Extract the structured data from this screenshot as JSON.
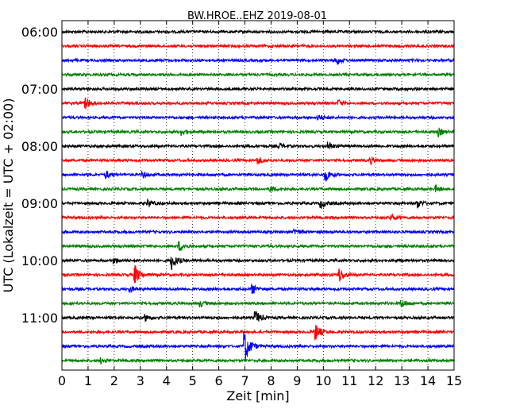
{
  "chart_data": {
    "type": "line",
    "title": "BW.HROE..EHZ 2019-08-01",
    "xlabel": "Zeit  [min]",
    "ylabel": "UTC (Lokalzeit = UTC + 02:00)",
    "xlim": [
      0,
      15
    ],
    "x_ticks": [
      0,
      1,
      2,
      3,
      4,
      5,
      6,
      7,
      8,
      9,
      10,
      11,
      12,
      13,
      14,
      15
    ],
    "x_tick_labels": [
      "0",
      "1",
      "2",
      "3",
      "4",
      "5",
      "6",
      "7",
      "8",
      "9",
      "10",
      "11",
      "12",
      "13",
      "14",
      "15"
    ],
    "y_tick_labels": [
      "06:00",
      "07:00",
      "08:00",
      "09:00",
      "10:00",
      "11:00"
    ],
    "grid": "vertical dotted",
    "series_colors": [
      "#000000",
      "#ff0000",
      "#0000ff",
      "#008000"
    ],
    "traces": [
      {
        "start": "06:00",
        "events": []
      },
      {
        "start": "06:15",
        "events": []
      },
      {
        "start": "06:30",
        "events": [
          {
            "t": 10.5,
            "amp": 0.45
          }
        ]
      },
      {
        "start": "06:45",
        "events": []
      },
      {
        "start": "07:00",
        "events": []
      },
      {
        "start": "07:15",
        "events": [
          {
            "t": 0.9,
            "amp": 0.6
          },
          {
            "t": 10.6,
            "amp": 0.3
          }
        ]
      },
      {
        "start": "07:30",
        "events": [
          {
            "t": 9.8,
            "amp": 0.3
          }
        ]
      },
      {
        "start": "07:45",
        "events": [
          {
            "t": 4.6,
            "amp": 0.3
          },
          {
            "t": 14.4,
            "amp": 0.4
          }
        ]
      },
      {
        "start": "08:00",
        "events": [
          {
            "t": 8.3,
            "amp": 0.3
          },
          {
            "t": 10.2,
            "amp": 0.35
          }
        ]
      },
      {
        "start": "08:15",
        "events": [
          {
            "t": 7.5,
            "amp": 0.35
          },
          {
            "t": 11.8,
            "amp": 0.35
          }
        ]
      },
      {
        "start": "08:30",
        "events": [
          {
            "t": 1.7,
            "amp": 0.35
          },
          {
            "t": 3.1,
            "amp": 0.3
          },
          {
            "t": 10.1,
            "amp": 0.6
          }
        ]
      },
      {
        "start": "08:45",
        "events": [
          {
            "t": 8.0,
            "amp": 0.3
          },
          {
            "t": 14.3,
            "amp": 0.3
          }
        ]
      },
      {
        "start": "09:00",
        "events": [
          {
            "t": 3.3,
            "amp": 0.35
          },
          {
            "t": 9.9,
            "amp": 0.45
          },
          {
            "t": 13.6,
            "amp": 0.45
          }
        ]
      },
      {
        "start": "09:15",
        "events": [
          {
            "t": 12.6,
            "amp": 0.3
          }
        ]
      },
      {
        "start": "09:30",
        "events": [
          {
            "t": 8.9,
            "amp": 0.3
          }
        ]
      },
      {
        "start": "09:45",
        "events": [
          {
            "t": 4.5,
            "amp": 0.5
          }
        ]
      },
      {
        "start": "10:00",
        "events": [
          {
            "t": 4.2,
            "amp": 0.9
          },
          {
            "t": 2.0,
            "amp": 0.3
          }
        ]
      },
      {
        "start": "10:15",
        "events": [
          {
            "t": 2.8,
            "amp": 1.0
          },
          {
            "t": 10.6,
            "amp": 0.75
          }
        ]
      },
      {
        "start": "10:30",
        "events": [
          {
            "t": 7.3,
            "amp": 0.45
          },
          {
            "t": 2.6,
            "amp": 0.3
          }
        ]
      },
      {
        "start": "10:45",
        "events": [
          {
            "t": 13.0,
            "amp": 0.35
          },
          {
            "t": 5.3,
            "amp": 0.3
          }
        ]
      },
      {
        "start": "11:00",
        "events": [
          {
            "t": 7.4,
            "amp": 0.75
          },
          {
            "t": 3.2,
            "amp": 0.3
          }
        ]
      },
      {
        "start": "11:15",
        "events": [
          {
            "t": 9.7,
            "amp": 0.85
          }
        ]
      },
      {
        "start": "11:30",
        "events": [
          {
            "t": 7.0,
            "amp": 1.7
          }
        ]
      },
      {
        "start": "11:45",
        "events": [
          {
            "t": 1.5,
            "amp": 0.3
          }
        ]
      }
    ]
  }
}
